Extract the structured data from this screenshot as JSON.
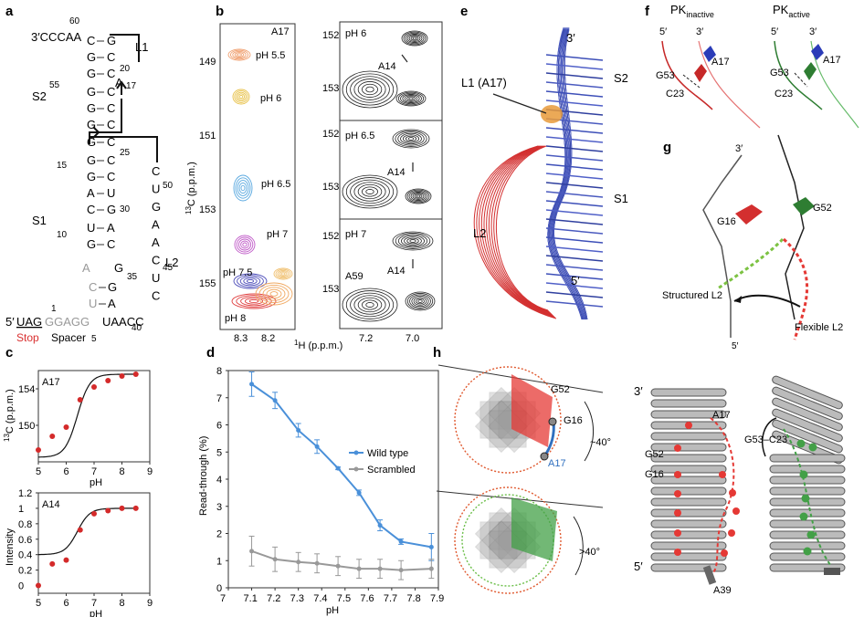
{
  "panels": {
    "a": "a",
    "b": "b",
    "c": "c",
    "d": "d",
    "e": "e",
    "f": "f",
    "g": "g",
    "h": "h"
  },
  "panel_a": {
    "top_tail": "3′CCCAA",
    "n60": "60",
    "L1": "L1",
    "S2": "S2",
    "S1": "S1",
    "L2": "L2",
    "A17": "A",
    "n17": "17",
    "n20": "20",
    "n55": "55",
    "n25": "25",
    "n15": "15",
    "n10": "10",
    "n30": "30",
    "n50": "50",
    "n45": "45",
    "n35": "35",
    "n40": "40",
    "n1": "1",
    "n5": "5",
    "five_prime": "5′",
    "uag": "UAG",
    "ggagg": "GGAGG",
    "spacer_tail": "UAACC",
    "stop": "Stop",
    "spacer": "Spacer",
    "stem_pairs": [
      [
        "C",
        "G"
      ],
      [
        "G",
        "C"
      ],
      [
        "G",
        "C"
      ],
      [
        "G",
        "C"
      ],
      [
        "G",
        "C"
      ],
      [
        "G",
        "C"
      ],
      [
        "G",
        "C"
      ],
      [
        "G",
        "C"
      ],
      [
        "G",
        "C"
      ],
      [
        "A",
        "U"
      ],
      [
        "C",
        "G"
      ],
      [
        "U",
        "A"
      ],
      [
        "G",
        "C"
      ],
      [
        "G",
        "C"
      ]
    ],
    "loop_right": [
      "C",
      "U",
      "G",
      "A",
      "A",
      "C",
      "U",
      "C"
    ],
    "A_gray": "A",
    "G35": "G",
    "C_gray": "C",
    "U_gray": "U",
    "pair_G_A": "G"
  },
  "panel_b": {
    "a17": "A17",
    "ph55": "pH 5.5",
    "ph6": "pH 6",
    "ph65": "pH 6.5",
    "ph7": "pH 7",
    "ph75": "pH 7.5",
    "ph8": "pH 8",
    "ylabel": "13C (p.p.m.)",
    "ylabel_sup": "13",
    "ylabel_rest": "C (p.p.m.)",
    "xlabel_sup": "1",
    "xlabel_rest": "H (p.p.m.)",
    "left_y_ticks": [
      "149",
      "151",
      "153",
      "155"
    ],
    "left_x_ticks": [
      "8.3",
      "8.2"
    ],
    "right_y_ticks": [
      "152",
      "153"
    ],
    "right_x_ticks": [
      "7.2",
      "7.0"
    ],
    "r_ph6": "pH 6",
    "r_ph65": "pH 6.5",
    "r_ph7": "pH 7",
    "a14": "A14",
    "a59": "A59"
  },
  "chart_data": [
    {
      "type": "scatter",
      "panel": "c",
      "label": "A17",
      "ylabel": "13C (p.p.m.)",
      "xlabel": "pH",
      "x": [
        5,
        5.5,
        6,
        6.5,
        7,
        7.5,
        8,
        8.5
      ],
      "y": [
        147.3,
        148.8,
        149.8,
        152.8,
        154.2,
        154.9,
        155.4,
        155.6
      ],
      "ylim": [
        146,
        156
      ],
      "yticks": [
        150,
        154
      ],
      "xticks": [
        5,
        6,
        7,
        8,
        9
      ]
    },
    {
      "type": "scatter",
      "panel": "c",
      "label": "A14",
      "ylabel": "Intensity",
      "xlabel": "pH",
      "x": [
        5,
        5.5,
        6,
        6.5,
        7,
        7.5,
        8,
        8.5
      ],
      "y": [
        0.0,
        0.28,
        0.33,
        0.72,
        0.93,
        0.97,
        1.0,
        1.0
      ],
      "ylim": [
        -0.1,
        1.2
      ],
      "yticks": [
        0,
        0.2,
        0.4,
        0.6,
        0.8,
        1.0,
        1.2
      ],
      "xticks": [
        5,
        6,
        7,
        8,
        9
      ]
    },
    {
      "type": "line",
      "panel": "d",
      "xlabel": "pH",
      "ylabel": "Read-through (%)",
      "x": [
        7.1,
        7.2,
        7.3,
        7.38,
        7.47,
        7.56,
        7.65,
        7.74,
        7.87
      ],
      "series": [
        {
          "name": "Wild type",
          "color": "#4a90d9",
          "values": [
            7.5,
            6.9,
            5.8,
            5.2,
            4.4,
            3.5,
            2.3,
            1.7,
            1.5
          ],
          "err": [
            0.45,
            0.3,
            0.25,
            0.25,
            0.05,
            0.1,
            0.2,
            0.1,
            0.5
          ]
        },
        {
          "name": "Scrambled",
          "color": "#999999",
          "values": [
            1.35,
            1.05,
            0.95,
            0.9,
            0.8,
            0.7,
            0.7,
            0.65,
            0.7
          ],
          "err": [
            0.55,
            0.45,
            0.35,
            0.35,
            0.35,
            0.35,
            0.35,
            0.35,
            0.35
          ]
        }
      ],
      "xlim": [
        7.0,
        7.9
      ],
      "ylim": [
        0,
        8
      ],
      "xticks": [
        7,
        7.1,
        7.2,
        7.3,
        7.4,
        7.5,
        7.6,
        7.7,
        7.8,
        7.9
      ],
      "yticks": [
        0,
        1,
        2,
        3,
        4,
        5,
        6,
        7,
        8
      ]
    }
  ],
  "panel_e": {
    "three": "3′",
    "five": "5′",
    "L1": "L1 (A17)",
    "S2": "S2",
    "S1": "S1",
    "L2": "L2"
  },
  "panel_f": {
    "pk_in": "PK",
    "pk_in_sub": "inactive",
    "pk_act": "PK",
    "pk_act_sub": "active",
    "five": "5′",
    "three": "3′",
    "A17": "A17",
    "G53": "G53",
    "C23": "C23"
  },
  "panel_g": {
    "three": "3′",
    "five": "5′",
    "G16": "G16",
    "G52": "G52",
    "structured": "Structured L2",
    "flexible": "Flexible L2"
  },
  "panel_h": {
    "G52": "G52",
    "G16": "G16",
    "A17": "A17",
    "angle1": "~40°",
    "angle2": ">40°",
    "three": "3′",
    "five": "5′",
    "r_A17": "A17",
    "r_G53C23": "G53–C23",
    "r_G52": "G52",
    "r_G16": "G16",
    "A39": "A39"
  }
}
